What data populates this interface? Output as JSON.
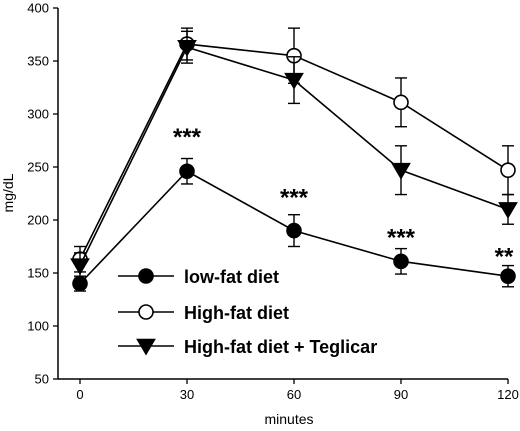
{
  "chart_data": {
    "type": "line",
    "xlabel": "minutes",
    "ylabel": "mg/dL",
    "x": [
      0,
      30,
      60,
      90,
      120
    ],
    "xticks": [
      "0",
      "30",
      "60",
      "90",
      "120"
    ],
    "yticks": [
      "50",
      "100",
      "150",
      "200",
      "250",
      "300",
      "350",
      "400"
    ],
    "xlim": [
      0,
      120
    ],
    "ylim": [
      50,
      400
    ],
    "grid": false,
    "legend_position": "bottom-left",
    "series": [
      {
        "name": "low-fat diet",
        "marker": "filled-circle",
        "values": [
          140,
          246,
          190,
          161,
          147
        ],
        "errors": [
          7,
          12,
          15,
          12,
          10
        ]
      },
      {
        "name": "High-fat diet",
        "marker": "open-circle",
        "values": [
          163,
          366,
          355,
          311,
          247
        ],
        "errors": [
          12,
          15,
          26,
          23,
          23
        ]
      },
      {
        "name": "High-fat diet + Teglicar",
        "marker": "filled-triangle-down",
        "values": [
          157,
          363,
          332,
          247,
          210
        ],
        "errors": [
          12,
          15,
          22,
          23,
          14
        ]
      }
    ],
    "annotations": [
      {
        "x": 30,
        "y": 285,
        "text": "***"
      },
      {
        "x": 60,
        "y": 228,
        "text": "***"
      },
      {
        "x": 90,
        "y": 190,
        "text": "***"
      },
      {
        "x": 120,
        "y": 172,
        "text": "**"
      }
    ]
  }
}
